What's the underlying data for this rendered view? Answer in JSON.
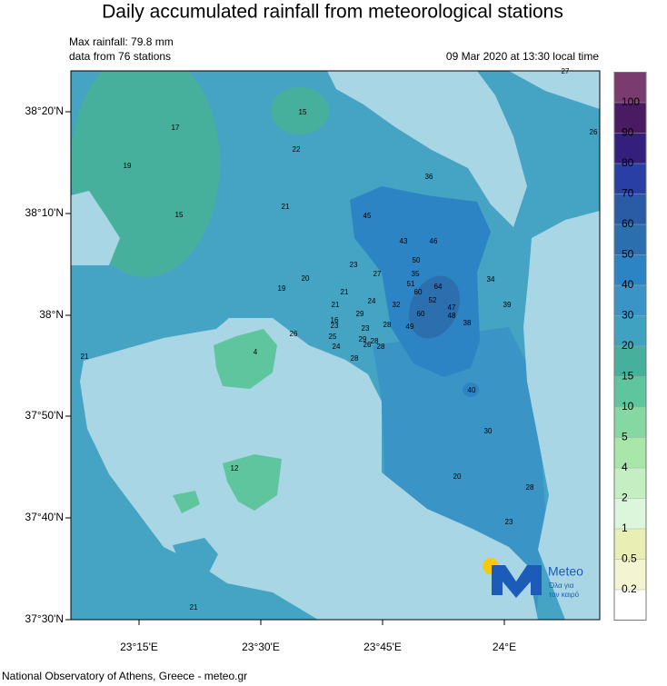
{
  "title": "Daily accumulated rainfall from meteorological stations",
  "info": {
    "max_rainfall": "Max rainfall: 79.8 mm",
    "stations_count": "data from 76 stations",
    "timestamp": "09 Mar 2020 at 13:30 local time"
  },
  "map": {
    "lat_labels": [
      "38°20'N",
      "38°10'N",
      "38°N",
      "37°50'N",
      "37°40'N",
      "37°30'N"
    ],
    "lon_labels": [
      "23°15'E",
      "23°30'E",
      "23°45'E",
      "24°E"
    ],
    "station_values": [
      27,
      26,
      15,
      17,
      22,
      19,
      36,
      21,
      15,
      45,
      43,
      46,
      50,
      23,
      27,
      20,
      35,
      19,
      51,
      21,
      60,
      64,
      34,
      24,
      32,
      52,
      21,
      47,
      39,
      29,
      16,
      23,
      60,
      48,
      28,
      23,
      49,
      38,
      25,
      29,
      28,
      26,
      28,
      24,
      26,
      4,
      21,
      28,
      40,
      30,
      12,
      20,
      28,
      23,
      21
    ]
  },
  "colorbar": {
    "levels": [
      0.2,
      0.5,
      1,
      2,
      4,
      5,
      10,
      15,
      20,
      30,
      40,
      50,
      60,
      70,
      80,
      90,
      100
    ],
    "colors": [
      "#ffffff",
      "#f3f5d2",
      "#e9efb4",
      "#dbf6da",
      "#c3efc3",
      "#a8e6aa",
      "#86d8a2",
      "#5fc59f",
      "#46b09c",
      "#3ea2c0",
      "#3a94c6",
      "#2d84c4",
      "#2b6fae",
      "#2a5ca6",
      "#2a3fa6",
      "#351f7c",
      "#4a1a62",
      "#7a3b6e"
    ]
  },
  "logo": {
    "name": "Meteo",
    "tagline_1": "Όλα για",
    "tagline_2": "τον καιρό"
  },
  "footer": "National Observatory of Athens, Greece - meteo.gr"
}
